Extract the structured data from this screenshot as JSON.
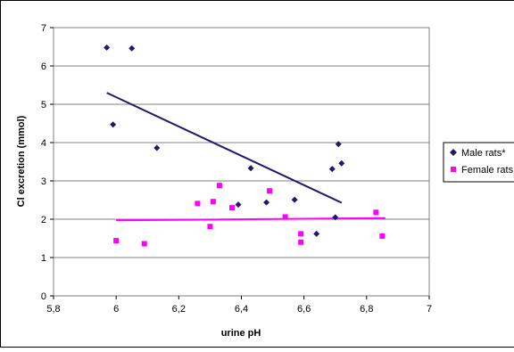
{
  "chart_data": {
    "type": "scatter",
    "xlabel": "urine pH",
    "ylabel": "Cl excretion (mmol)",
    "xlim": [
      5.8,
      7
    ],
    "ylim": [
      0,
      7
    ],
    "x_ticks": [
      "5,8",
      "6",
      "6,2",
      "6,4",
      "6,6",
      "6,8",
      "7"
    ],
    "y_ticks": [
      "0",
      "1",
      "2",
      "3",
      "4",
      "5",
      "6",
      "7"
    ],
    "grid": "horizontal",
    "legend_position": "right",
    "series": [
      {
        "name": "Male rats*",
        "marker": "diamond",
        "color": "#1f1a6b",
        "points": [
          [
            5.97,
            6.48
          ],
          [
            6.05,
            6.46
          ],
          [
            5.99,
            4.47
          ],
          [
            6.13,
            3.86
          ],
          [
            6.43,
            3.33
          ],
          [
            6.39,
            2.38
          ],
          [
            6.48,
            2.44
          ],
          [
            6.57,
            2.51
          ],
          [
            6.64,
            1.62
          ],
          [
            6.69,
            3.31
          ],
          [
            6.71,
            3.96
          ],
          [
            6.72,
            3.46
          ],
          [
            6.7,
            2.05
          ]
        ],
        "trendline": [
          [
            5.97,
            5.3
          ],
          [
            6.72,
            2.43
          ]
        ]
      },
      {
        "name": "Female rats",
        "marker": "square",
        "color": "#ff00ff",
        "points": [
          [
            6.0,
            1.44
          ],
          [
            6.09,
            1.36
          ],
          [
            6.26,
            2.41
          ],
          [
            6.3,
            1.81
          ],
          [
            6.31,
            2.46
          ],
          [
            6.33,
            2.88
          ],
          [
            6.37,
            2.3
          ],
          [
            6.49,
            2.74
          ],
          [
            6.54,
            2.06
          ],
          [
            6.59,
            1.62
          ],
          [
            6.59,
            1.4
          ],
          [
            6.83,
            2.18
          ],
          [
            6.85,
            1.56
          ]
        ],
        "trendline": [
          [
            6.0,
            1.97
          ],
          [
            6.86,
            2.03
          ]
        ]
      }
    ]
  }
}
